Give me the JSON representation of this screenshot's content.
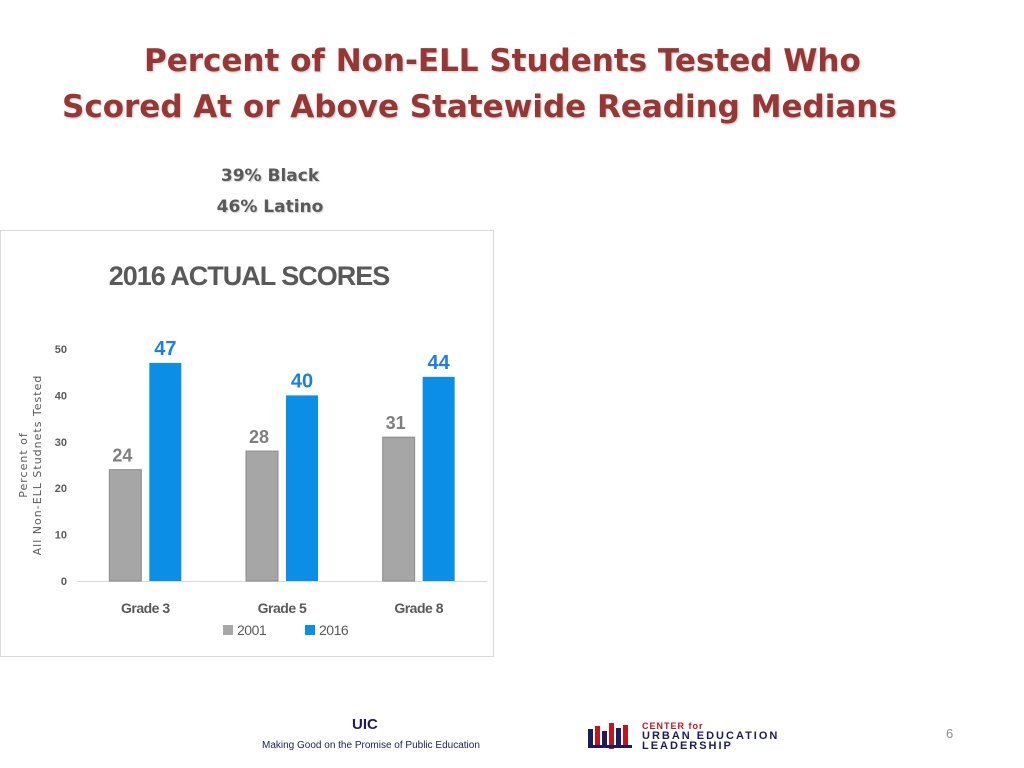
{
  "title": {
    "line1": "Percent of Non-ELL Students Tested Who",
    "line2": "Scored At or Above Statewide Reading Medians"
  },
  "stats": {
    "black": "39% Black",
    "latino": "46% Latino"
  },
  "chart_data": {
    "type": "bar",
    "title": "2016 ACTUAL SCORES",
    "ylabel_line1": "Percent of",
    "ylabel_line2": "All Non-ELL Studnets Tested",
    "categories": [
      "Grade 3",
      "Grade 5",
      "Grade 8"
    ],
    "series": [
      {
        "name": "2001",
        "values": [
          24,
          28,
          31
        ],
        "color": "#a6a6a6"
      },
      {
        "name": "2016",
        "values": [
          47,
          40,
          44
        ],
        "color": "#0b8ee6"
      }
    ],
    "ylim": [
      0,
      50
    ],
    "yticks": [
      0,
      10,
      20,
      30,
      40,
      50
    ],
    "data_label_colors": {
      "2001": "#7f7f7f",
      "2016": "#1f7fdc"
    },
    "grid": false,
    "legend_position": "bottom"
  },
  "footer": {
    "uic": "UIC",
    "tagline": "Making Good on the Promise of Public Education",
    "logo_center": "CENTER for",
    "logo_urban": "URBAN EDUCATION",
    "logo_leadership": "LEADERSHIP",
    "page_number": "6"
  }
}
